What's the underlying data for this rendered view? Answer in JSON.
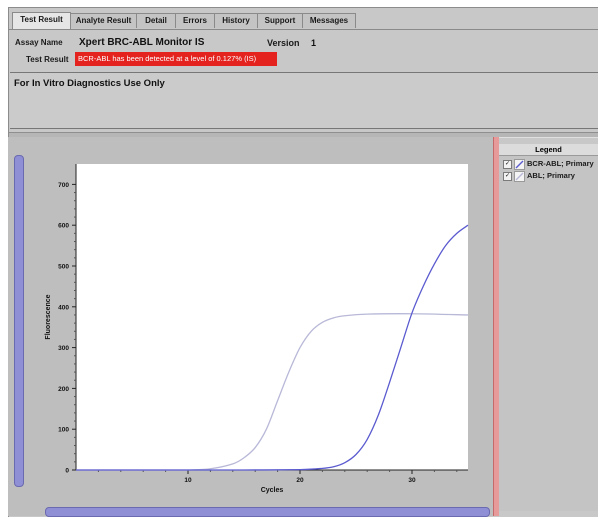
{
  "tabs": [
    {
      "label": "Test Result",
      "active": true
    },
    {
      "label": "Analyte Result",
      "active": false
    },
    {
      "label": "Detail",
      "active": false
    },
    {
      "label": "Errors",
      "active": false
    },
    {
      "label": "History",
      "active": false
    },
    {
      "label": "Support",
      "active": false
    },
    {
      "label": "Messages",
      "active": false
    }
  ],
  "header": {
    "assay_label": "Assay Name",
    "assay_value": "Xpert BRC-ABL Monitor IS",
    "version_label": "Version",
    "version_value": "1",
    "result_label": "Test Result",
    "result_value": "BCR-ABL has been detected at a level of 0.127% (IS)",
    "result_color": "#e4231f"
  },
  "notice": "For In Vitro Diagnostics Use Only",
  "legend": {
    "title": "Legend",
    "items": [
      {
        "label": "BCR-ABL; Primary",
        "color": "#5b5bd0",
        "checked": true
      },
      {
        "label": "ABL; Primary",
        "color": "#b8b8d8",
        "checked": true
      }
    ]
  },
  "chart_data": {
    "type": "line",
    "xlabel": "Cycles",
    "ylabel": "Fluorescence",
    "xlim": [
      0,
      35
    ],
    "ylim": [
      0,
      750
    ],
    "xticks": [
      10,
      20,
      30
    ],
    "yticks": [
      0,
      100,
      200,
      300,
      400,
      500,
      600,
      700
    ],
    "grid": false,
    "legend_position": "right",
    "series": [
      {
        "name": "BCR-ABL; Primary",
        "color": "#5b5bd0",
        "x": [
          0,
          5,
          10,
          15,
          20,
          22,
          23,
          24,
          25,
          26,
          27,
          28,
          29,
          30,
          31,
          32,
          33,
          34,
          35
        ],
        "y": [
          0,
          0,
          0,
          0,
          1,
          4,
          8,
          18,
          38,
          75,
          135,
          215,
          300,
          385,
          450,
          505,
          550,
          580,
          600
        ]
      },
      {
        "name": "ABL; Primary",
        "color": "#b8b8d8",
        "x": [
          0,
          5,
          10,
          12,
          14,
          15,
          16,
          17,
          18,
          19,
          20,
          21,
          22,
          23,
          24,
          26,
          30,
          35
        ],
        "y": [
          0,
          0,
          0,
          3,
          15,
          30,
          55,
          100,
          170,
          240,
          300,
          340,
          362,
          373,
          378,
          382,
          383,
          380
        ]
      }
    ]
  }
}
